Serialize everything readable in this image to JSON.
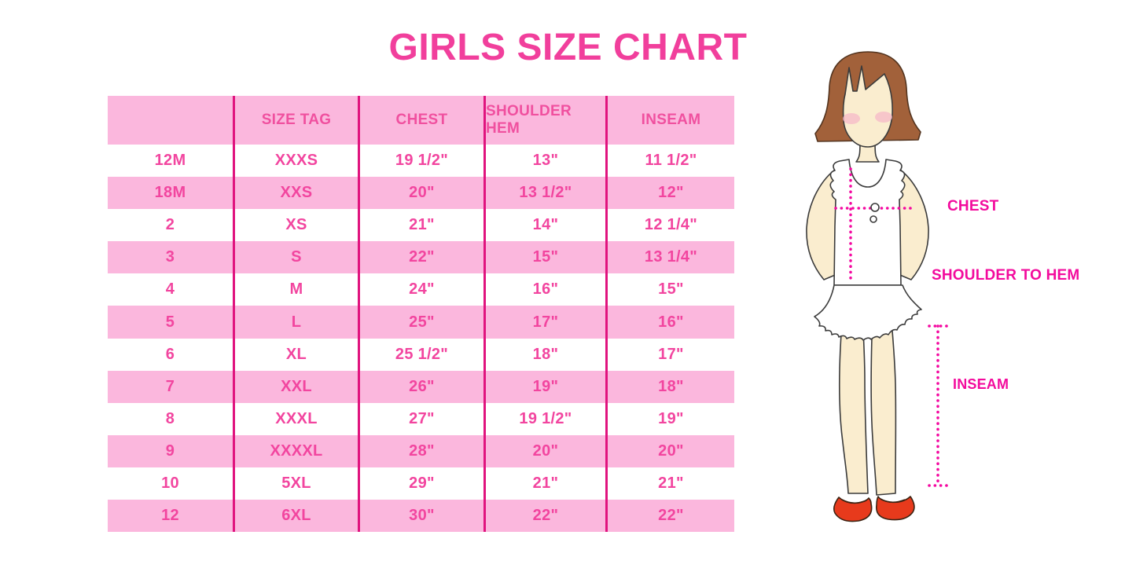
{
  "title": "GIRLS SIZE CHART",
  "chart_data": {
    "type": "table",
    "title": "GIRLS SIZE CHART",
    "columns": [
      "",
      "SIZE TAG",
      "CHEST",
      "SHOULDER HEM",
      "INSEAM"
    ],
    "rows": [
      [
        "12M",
        "XXXS",
        "19 1/2\"",
        "13\"",
        "11 1/2\""
      ],
      [
        "18M",
        "XXS",
        "20\"",
        "13 1/2\"",
        "12\""
      ],
      [
        "2",
        "XS",
        "21\"",
        "14\"",
        "12 1/4\""
      ],
      [
        "3",
        "S",
        "22\"",
        "15\"",
        "13 1/4\""
      ],
      [
        "4",
        "M",
        "24\"",
        "16\"",
        "15\""
      ],
      [
        "5",
        "L",
        "25\"",
        "17\"",
        "16\""
      ],
      [
        "6",
        "XL",
        "25 1/2\"",
        "18\"",
        "17\""
      ],
      [
        "7",
        "XXL",
        "26\"",
        "19\"",
        "18\""
      ],
      [
        "8",
        "XXXL",
        "27\"",
        "19 1/2\"",
        "19\""
      ],
      [
        "9",
        "XXXXL",
        "28\"",
        "20\"",
        "20\""
      ],
      [
        "10",
        "5XL",
        "29\"",
        "21\"",
        "21\""
      ],
      [
        "12",
        "6XL",
        "30\"",
        "22\"",
        "22\""
      ]
    ],
    "row_stripe_pattern": "white/pink alternating, header pink",
    "legend_position": "none",
    "grid": "vertical magenta column dividers only"
  },
  "figure": {
    "description": "illustrated girl with brown bob hair, white ruffled sleeveless top, red mary-jane shoes, magenta dotted measurement guides",
    "labels": {
      "chest": "CHEST",
      "shoulder_to_hem": "SHOULDER TO HEM",
      "inseam": "INSEAM"
    }
  },
  "colors": {
    "title_pink": "#f13f9c",
    "row_pink": "#fbb7dd",
    "divider_magenta": "#e0137e",
    "cell_text_pink": "#f2459f",
    "label_magenta": "#f30b9d",
    "dotted_line_magenta": "#f408a0",
    "hair_brown": "#a2613a",
    "skin_cream": "#faedcf",
    "blush_pink": "#f5b8c8",
    "shoe_red": "#e73a1c",
    "background": "#ffffff"
  }
}
